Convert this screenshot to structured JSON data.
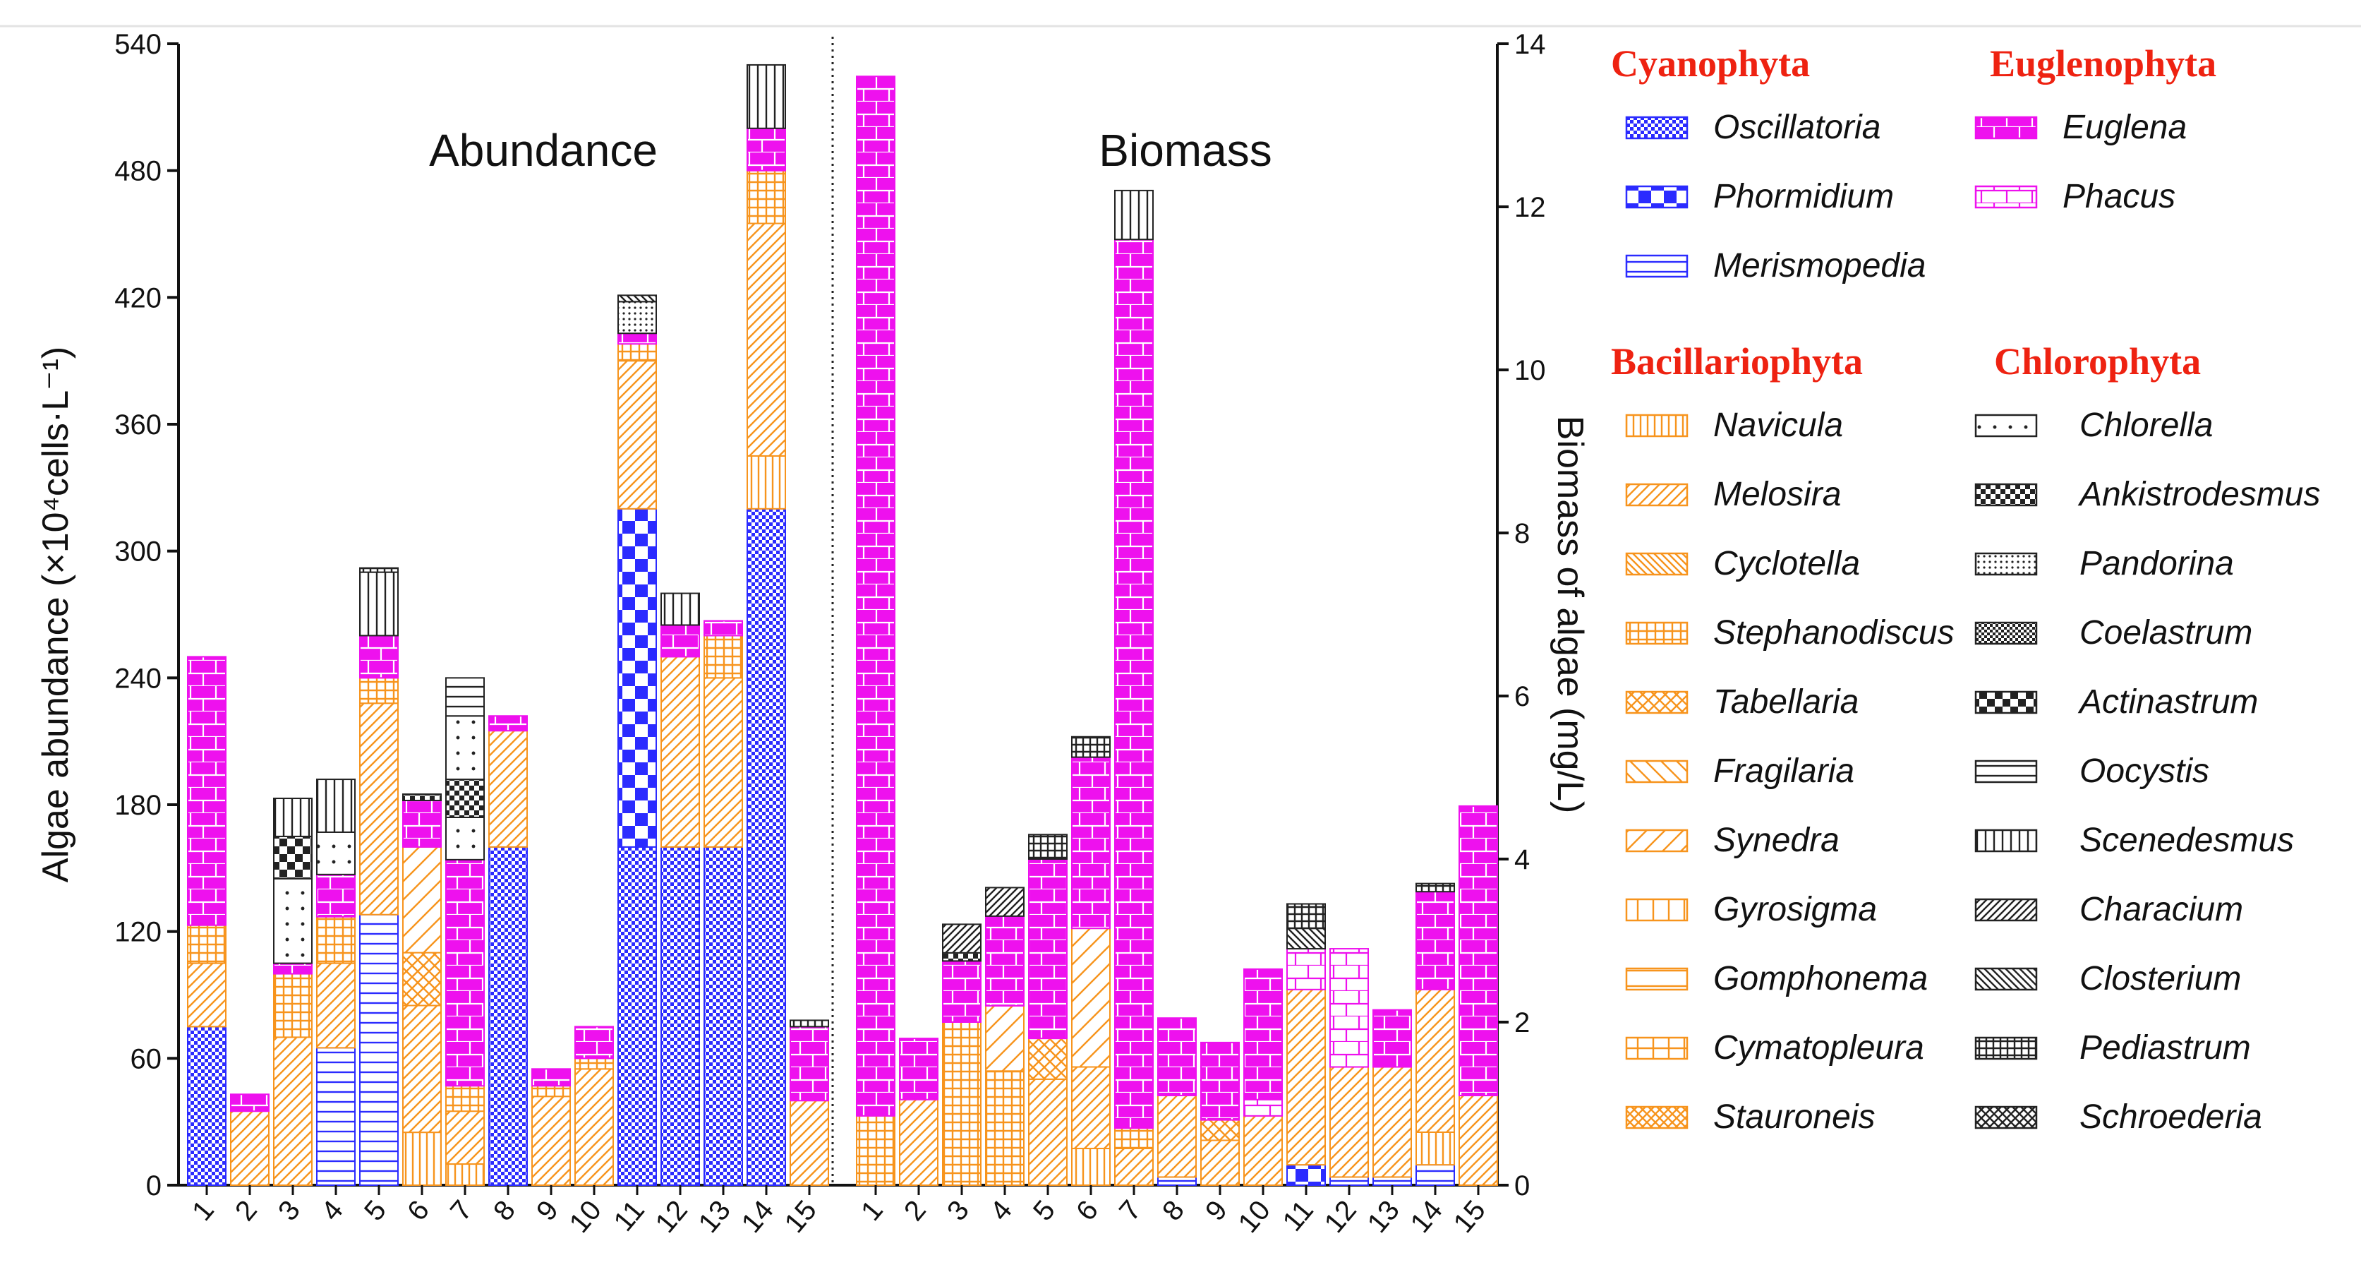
{
  "chart_data": {
    "type": "bar",
    "stacked": true,
    "panels": [
      {
        "title": "Abundance",
        "yaxis": "left",
        "categories": [
          "1",
          "2",
          "3",
          "4",
          "5",
          "6",
          "7",
          "8",
          "9",
          "10",
          "11",
          "12",
          "13",
          "14",
          "15"
        ],
        "segments": [
          [
            [
              "Oscillatoria",
              75
            ],
            [
              "Melosira",
              30
            ],
            [
              "Stephanodiscus",
              18
            ],
            [
              "Euglena",
              127
            ]
          ],
          [
            [
              "Melosira",
              35
            ],
            [
              "Euglena",
              8
            ]
          ],
          [
            [
              "Melosira",
              70
            ],
            [
              "Stephanodiscus",
              30
            ],
            [
              "Euglena",
              5
            ],
            [
              "Chlorella",
              40
            ],
            [
              "Actinastrum",
              20
            ],
            [
              "Scenedesmus",
              18
            ]
          ],
          [
            [
              "Merismopedia",
              65
            ],
            [
              "Melosira",
              40
            ],
            [
              "Stephanodiscus",
              22
            ],
            [
              "Euglena",
              20
            ],
            [
              "Chlorella",
              20
            ],
            [
              "Scenedesmus",
              25
            ]
          ],
          [
            [
              "Merismopedia",
              128
            ],
            [
              "Melosira",
              100
            ],
            [
              "Stephanodiscus",
              12
            ],
            [
              "Euglena",
              20
            ],
            [
              "Scenedesmus",
              30
            ],
            [
              "Pediastrum",
              2
            ]
          ],
          [
            [
              "Navicula",
              25
            ],
            [
              "Melosira",
              60
            ],
            [
              "Tabellaria",
              25
            ],
            [
              "Synedra",
              50
            ],
            [
              "Euglena",
              22
            ],
            [
              "Ankistrodesmus",
              3
            ]
          ],
          [
            [
              "Navicula",
              10
            ],
            [
              "Melosira",
              25
            ],
            [
              "Stephanodiscus",
              12
            ],
            [
              "Euglena",
              107
            ],
            [
              "Chlorella",
              20
            ],
            [
              "Ankistrodesmus",
              18
            ],
            [
              "Chlorella",
              30
            ],
            [
              "Oocystis",
              18
            ]
          ],
          [
            [
              "Oscillatoria",
              160
            ],
            [
              "Melosira",
              55
            ],
            [
              "Euglena",
              7
            ]
          ],
          [
            [
              "Melosira",
              42
            ],
            [
              "Stephanodiscus",
              5
            ],
            [
              "Euglena",
              8
            ]
          ],
          [
            [
              "Melosira",
              55
            ],
            [
              "Stephanodiscus",
              5
            ],
            [
              "Euglena",
              15
            ]
          ],
          [
            [
              "Oscillatoria",
              160
            ],
            [
              "Phormidium",
              160
            ],
            [
              "Melosira",
              70
            ],
            [
              "Stephanodiscus",
              8
            ],
            [
              "Euglena",
              5
            ],
            [
              "Pandorina",
              15
            ],
            [
              "Closterium",
              3
            ]
          ],
          [
            [
              "Oscillatoria",
              160
            ],
            [
              "Melosira",
              90
            ],
            [
              "Euglena",
              15
            ],
            [
              "Scenedesmus",
              15
            ]
          ],
          [
            [
              "Oscillatoria",
              160
            ],
            [
              "Melosira",
              80
            ],
            [
              "Stephanodiscus",
              20
            ],
            [
              "Euglena",
              7
            ]
          ],
          [
            [
              "Oscillatoria",
              320
            ],
            [
              "Navicula",
              25
            ],
            [
              "Melosira",
              110
            ],
            [
              "Stephanodiscus",
              25
            ],
            [
              "Euglena",
              20
            ],
            [
              "Scenedesmus",
              30
            ]
          ],
          [
            [
              "Melosira",
              40
            ],
            [
              "Euglena",
              35
            ],
            [
              "Pediastrum",
              3
            ]
          ]
        ]
      },
      {
        "title": "Biomass",
        "yaxis": "right",
        "categories": [
          "1",
          "2",
          "3",
          "4",
          "5",
          "6",
          "7",
          "8",
          "9",
          "10",
          "11",
          "12",
          "13",
          "14",
          "15"
        ],
        "segments": [
          [
            [
              "Stephanodiscus",
              0.85
            ],
            [
              "Euglena",
              12.75
            ]
          ],
          [
            [
              "Melosira",
              1.05
            ],
            [
              "Euglena",
              0.75
            ]
          ],
          [
            [
              "Stephanodiscus",
              2.0
            ],
            [
              "Euglena",
              0.75
            ],
            [
              "Ankistrodesmus",
              0.1
            ],
            [
              "Characium",
              0.35
            ]
          ],
          [
            [
              "Stephanodiscus",
              1.4
            ],
            [
              "Synedra",
              0.8
            ],
            [
              "Euglena",
              1.1
            ],
            [
              "Characium",
              0.35
            ]
          ],
          [
            [
              "Melosira",
              1.3
            ],
            [
              "Tabellaria",
              0.5
            ],
            [
              "Euglena",
              2.2
            ],
            [
              "Pediastrum",
              0.3
            ]
          ],
          [
            [
              "Navicula",
              0.45
            ],
            [
              "Melosira",
              1.0
            ],
            [
              "Synedra",
              1.7
            ],
            [
              "Euglena",
              2.1
            ],
            [
              "Pediastrum",
              0.25
            ]
          ],
          [
            [
              "Melosira",
              0.45
            ],
            [
              "Stephanodiscus",
              0.25
            ],
            [
              "Euglena",
              10.9
            ],
            [
              "Scenedesmus",
              0.6
            ]
          ],
          [
            [
              "Merismopedia",
              0.1
            ],
            [
              "Melosira",
              1.0
            ],
            [
              "Euglena",
              0.95
            ]
          ],
          [
            [
              "Melosira",
              0.55
            ],
            [
              "Tabellaria",
              0.25
            ],
            [
              "Euglena",
              0.95
            ]
          ],
          [
            [
              "Melosira",
              0.85
            ],
            [
              "Phacus",
              0.2
            ],
            [
              "Euglena",
              1.6
            ]
          ],
          [
            [
              "Phormidium",
              0.25
            ],
            [
              "Melosira",
              2.15
            ],
            [
              "Phacus",
              0.5
            ],
            [
              "Closterium",
              0.25
            ],
            [
              "Pediastrum",
              0.3
            ]
          ],
          [
            [
              "Merismopedia",
              0.1
            ],
            [
              "Melosira",
              1.35
            ],
            [
              "Phacus",
              1.45
            ]
          ],
          [
            [
              "Merismopedia",
              0.1
            ],
            [
              "Melosira",
              1.35
            ],
            [
              "Euglena",
              0.7
            ]
          ],
          [
            [
              "Merismopedia",
              0.25
            ],
            [
              "Navicula",
              0.4
            ],
            [
              "Melosira",
              1.75
            ],
            [
              "Euglena",
              1.2
            ],
            [
              "Pediastrum",
              0.1
            ]
          ],
          [
            [
              "Melosira",
              1.1
            ],
            [
              "Euglena",
              3.55
            ]
          ]
        ]
      }
    ],
    "left_axis": {
      "label": "Algae abundance (×10⁴cells·L⁻¹)",
      "ylim": [
        0,
        540
      ],
      "ticks": [
        0,
        60,
        120,
        180,
        240,
        300,
        360,
        420,
        480,
        540
      ]
    },
    "right_axis": {
      "label": "Biomass of algae  (mg/L)",
      "ylim": [
        0,
        14
      ],
      "ticks": [
        0,
        2,
        4,
        6,
        8,
        10,
        12,
        14
      ]
    },
    "legend": {
      "groups": [
        {
          "name": "Cyanophyta",
          "items": [
            "Oscillatoria",
            "Phormidium",
            "Merismopedia"
          ]
        },
        {
          "name": "Euglenophyta",
          "items": [
            "Euglena",
            "Phacus"
          ]
        },
        {
          "name": "Bacillariophyta",
          "items": [
            "Navicula",
            "Melosira",
            "Cyclotella",
            "Stephanodiscus",
            "Tabellaria",
            "Fragilaria",
            "Synedra",
            "Gyrosigma",
            "Gomphonema",
            "Cymatopleura",
            "Stauroneis"
          ]
        },
        {
          "name": "Chlorophyta",
          "items": [
            "Chlorella",
            "Ankistrodesmus",
            "Pandorina",
            "Coelastrum",
            "Actinastrum",
            "Oocystis",
            "Scenedesmus",
            "Characium",
            "Closterium",
            "Pediastrum",
            "Schroederia"
          ]
        }
      ]
    },
    "colors": {
      "blue": "#2b2bff",
      "orange": "#f7941d",
      "magenta": "#ee11ee",
      "black": "#222222",
      "group_title": "#ee2211"
    }
  }
}
